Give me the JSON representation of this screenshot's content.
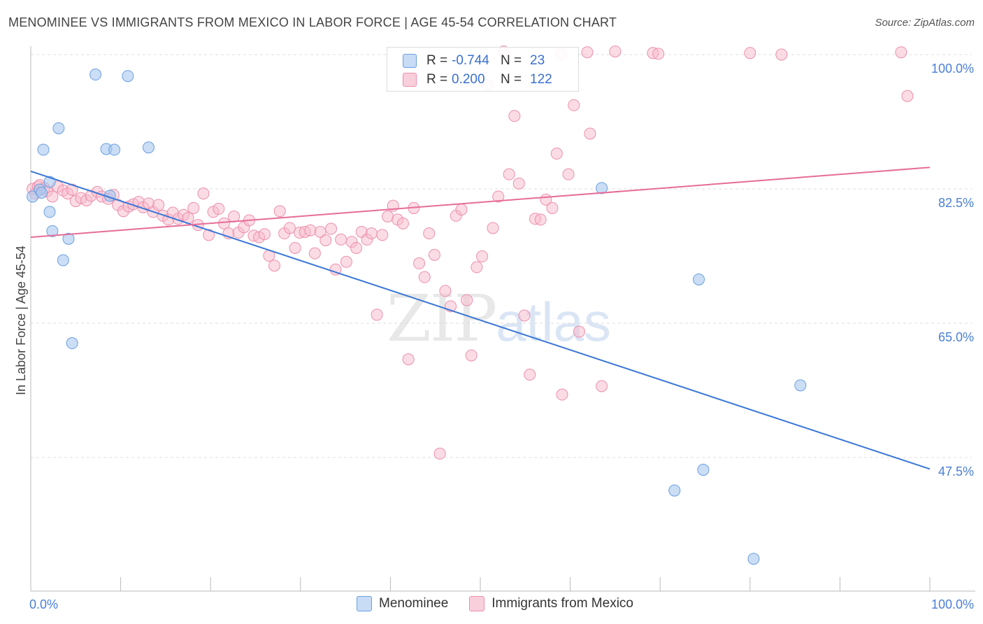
{
  "title": "MENOMINEE VS IMMIGRANTS FROM MEXICO IN LABOR FORCE | AGE 45-54 CORRELATION CHART",
  "source": "Source: ZipAtlas.com",
  "watermark": {
    "zip": "ZIP",
    "atlas": "atlas"
  },
  "legend": {
    "rows": [
      {
        "r_label": "R =",
        "r_value": "-0.744",
        "n_label": "N =",
        "n_value": "23"
      },
      {
        "r_label": "R =",
        "r_value": "0.200",
        "n_label": "N =",
        "n_value": "122"
      }
    ]
  },
  "bottom_legend": {
    "menominee": "Menominee",
    "mexico": "Immigrants from Mexico"
  },
  "colors": {
    "blue_fill": "#a8c8f0",
    "blue_stroke": "#6a9fe0",
    "blue_line": "#3a78d6",
    "pink_fill": "#f7b9cc",
    "pink_stroke": "#ec8fad",
    "pink_line": "#e66d98",
    "tick_text": "#4a7fd6",
    "grid": "#dddddd"
  },
  "chart_data": {
    "type": "scatter",
    "title": "MENOMINEE VS IMMIGRANTS FROM MEXICO IN LABOR FORCE | AGE 45-54 CORRELATION CHART",
    "xlabel": "",
    "ylabel": "In Labor Force | Age 45-54",
    "xlim": [
      0,
      100
    ],
    "ylim": [
      32,
      103
    ],
    "x_ticks": [
      "0.0%",
      "100.0%"
    ],
    "y_ticks": [
      {
        "value": 100.0,
        "label": "100.0%"
      },
      {
        "value": 82.5,
        "label": "82.5%"
      },
      {
        "value": 65.0,
        "label": "65.0%"
      },
      {
        "value": 47.5,
        "label": "47.5%"
      }
    ],
    "legend_position": "top-center",
    "series": [
      {
        "name": "Menominee",
        "r": -0.744,
        "n": 23,
        "trend": {
          "x0": 0.0,
          "y0": 84.8,
          "x1": 100.0,
          "y1": 46.0
        },
        "points": [
          [
            0.2,
            81.5
          ],
          [
            1.0,
            82.4
          ],
          [
            1.2,
            82.0
          ],
          [
            2.1,
            83.4
          ],
          [
            1.4,
            87.6
          ],
          [
            3.1,
            90.4
          ],
          [
            2.1,
            79.5
          ],
          [
            2.4,
            77.0
          ],
          [
            3.6,
            73.2
          ],
          [
            4.2,
            76.0
          ],
          [
            4.6,
            62.4
          ],
          [
            7.2,
            97.4
          ],
          [
            8.4,
            87.7
          ],
          [
            8.8,
            81.6
          ],
          [
            9.3,
            87.6
          ],
          [
            10.8,
            97.2
          ],
          [
            13.1,
            87.9
          ],
          [
            63.5,
            82.6
          ],
          [
            74.3,
            70.7
          ],
          [
            85.6,
            56.9
          ],
          [
            74.8,
            45.9
          ],
          [
            71.6,
            43.2
          ],
          [
            80.4,
            34.3
          ]
        ]
      },
      {
        "name": "Immigrants from Mexico",
        "r": 0.2,
        "n": 122,
        "trend": {
          "x0": 0.0,
          "y0": 76.2,
          "x1": 100.0,
          "y1": 85.3
        },
        "points": [
          [
            0.2,
            82.5
          ],
          [
            0.5,
            81.9
          ],
          [
            0.8,
            82.8
          ],
          [
            1.0,
            83.0
          ],
          [
            1.5,
            82.6
          ],
          [
            1.8,
            82.2
          ],
          [
            2.4,
            81.5
          ],
          [
            3.0,
            82.8
          ],
          [
            3.6,
            82.3
          ],
          [
            4.1,
            81.9
          ],
          [
            4.6,
            82.4
          ],
          [
            5.0,
            80.9
          ],
          [
            5.6,
            81.3
          ],
          [
            6.2,
            81.0
          ],
          [
            6.7,
            81.6
          ],
          [
            7.4,
            82.1
          ],
          [
            7.9,
            81.5
          ],
          [
            8.6,
            81.2
          ],
          [
            9.2,
            81.7
          ],
          [
            9.7,
            80.4
          ],
          [
            10.3,
            79.6
          ],
          [
            10.9,
            80.2
          ],
          [
            11.4,
            80.5
          ],
          [
            12.0,
            80.8
          ],
          [
            12.5,
            80.1
          ],
          [
            13.1,
            80.6
          ],
          [
            13.6,
            79.5
          ],
          [
            14.2,
            80.4
          ],
          [
            14.7,
            79.0
          ],
          [
            15.3,
            78.5
          ],
          [
            15.8,
            79.4
          ],
          [
            16.4,
            78.6
          ],
          [
            17.0,
            79.1
          ],
          [
            17.5,
            78.7
          ],
          [
            18.1,
            80.0
          ],
          [
            18.6,
            77.8
          ],
          [
            19.2,
            81.9
          ],
          [
            19.8,
            76.5
          ],
          [
            20.3,
            79.5
          ],
          [
            20.9,
            79.9
          ],
          [
            21.5,
            78.0
          ],
          [
            22.0,
            76.7
          ],
          [
            22.6,
            78.9
          ],
          [
            23.1,
            76.8
          ],
          [
            23.7,
            77.5
          ],
          [
            24.3,
            78.4
          ],
          [
            24.8,
            76.4
          ],
          [
            25.4,
            76.2
          ],
          [
            26.0,
            76.6
          ],
          [
            26.5,
            73.8
          ],
          [
            27.1,
            72.5
          ],
          [
            27.7,
            79.6
          ],
          [
            28.2,
            76.7
          ],
          [
            28.8,
            77.4
          ],
          [
            29.4,
            74.8
          ],
          [
            29.9,
            76.8
          ],
          [
            30.5,
            76.9
          ],
          [
            31.1,
            77.1
          ],
          [
            31.6,
            74.1
          ],
          [
            32.2,
            76.9
          ],
          [
            32.8,
            75.8
          ],
          [
            33.4,
            77.3
          ],
          [
            33.9,
            72.0
          ],
          [
            34.5,
            75.9
          ],
          [
            35.1,
            73.0
          ],
          [
            35.7,
            75.6
          ],
          [
            36.2,
            74.8
          ],
          [
            36.8,
            76.9
          ],
          [
            37.4,
            75.9
          ],
          [
            37.9,
            76.7
          ],
          [
            38.5,
            66.1
          ],
          [
            39.1,
            76.5
          ],
          [
            39.7,
            78.9
          ],
          [
            40.3,
            80.3
          ],
          [
            40.8,
            78.5
          ],
          [
            41.4,
            78.0
          ],
          [
            42.0,
            60.3
          ],
          [
            42.6,
            80.0
          ],
          [
            43.2,
            72.8
          ],
          [
            43.8,
            71.0
          ],
          [
            44.3,
            76.7
          ],
          [
            44.9,
            73.9
          ],
          [
            45.5,
            48.0
          ],
          [
            46.1,
            69.2
          ],
          [
            46.7,
            67.2
          ],
          [
            47.3,
            79.0
          ],
          [
            47.9,
            79.8
          ],
          [
            48.5,
            68.0
          ],
          [
            49.0,
            60.8
          ],
          [
            49.6,
            72.3
          ],
          [
            50.2,
            73.7
          ],
          [
            50.8,
            96.0
          ],
          [
            51.4,
            77.4
          ],
          [
            52.0,
            81.5
          ],
          [
            52.6,
            100.4
          ],
          [
            53.2,
            84.4
          ],
          [
            53.8,
            92.0
          ],
          [
            54.3,
            83.2
          ],
          [
            54.9,
            66.0
          ],
          [
            55.5,
            58.3
          ],
          [
            56.1,
            78.6
          ],
          [
            56.7,
            78.5
          ],
          [
            57.3,
            81.1
          ],
          [
            58.0,
            80.0
          ],
          [
            58.5,
            87.1
          ],
          [
            59.1,
            55.7
          ],
          [
            59.8,
            84.4
          ],
          [
            60.4,
            93.4
          ],
          [
            61.0,
            63.9
          ],
          [
            61.9,
            100.3
          ],
          [
            62.2,
            89.7
          ],
          [
            63.5,
            56.8
          ],
          [
            65.0,
            100.4
          ],
          [
            69.2,
            100.2
          ],
          [
            69.8,
            100.1
          ],
          [
            80.0,
            100.2
          ],
          [
            83.5,
            100.0
          ],
          [
            96.8,
            100.3
          ],
          [
            97.5,
            94.6
          ],
          [
            59.0,
            100.1
          ]
        ]
      }
    ]
  }
}
